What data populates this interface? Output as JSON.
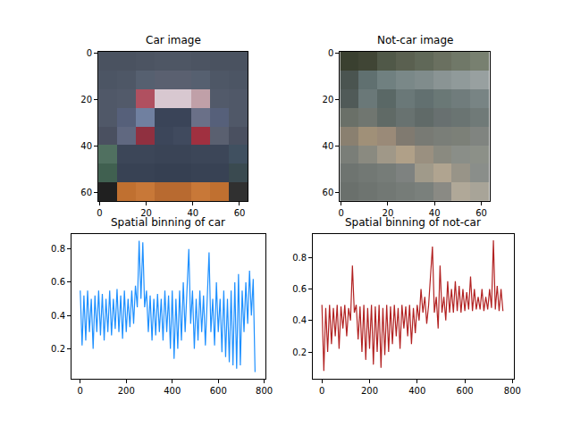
{
  "chart_data": [
    {
      "type": "image",
      "title": "Car image",
      "xlim": [
        -0.5,
        63.5
      ],
      "ylim": [
        63.5,
        -0.5
      ],
      "xticks": [
        0,
        20,
        40,
        60
      ],
      "yticks": [
        0,
        20,
        40,
        60
      ],
      "pixels": [
        [
          "#4a5260",
          "#4a5260",
          "#4c5462",
          "#4e5664",
          "#4e5664",
          "#4c5462",
          "#4a5260",
          "#4a5260"
        ],
        [
          "#4c5564",
          "#4e5766",
          "#566070",
          "#5a6070",
          "#5a6070",
          "#566070",
          "#4e5766",
          "#4c5564"
        ],
        [
          "#505868",
          "#525a6a",
          "#b05060",
          "#d8c8d0",
          "#d8c8d0",
          "#c0a0a8",
          "#525a6a",
          "#505868"
        ],
        [
          "#505868",
          "#56607a",
          "#7080a0",
          "#3a4458",
          "#3a4458",
          "#6a7088",
          "#56607a",
          "#505868"
        ],
        [
          "#4a5060",
          "#606880",
          "#903040",
          "#3c465a",
          "#404a5e",
          "#a03040",
          "#5a6070",
          "#4a5060"
        ],
        [
          "#507060",
          "#3c4658",
          "#3c4658",
          "#3a4456",
          "#3a4456",
          "#3c4658",
          "#3c4658",
          "#405060"
        ],
        [
          "#406050",
          "#384254",
          "#384254",
          "#364052",
          "#364052",
          "#384254",
          "#384254",
          "#3a4a50"
        ],
        [
          "#202020",
          "#c07030",
          "#c87838",
          "#b86a30",
          "#b86a30",
          "#c87838",
          "#c07030",
          "#303030"
        ]
      ]
    },
    {
      "type": "image",
      "title": "Not-car image",
      "xlim": [
        -0.5,
        63.5
      ],
      "ylim": [
        63.5,
        -0.5
      ],
      "xticks": [
        0,
        20,
        40,
        60
      ],
      "yticks": [
        0,
        20,
        40,
        60
      ],
      "pixels": [
        [
          "#3a4030",
          "#404535",
          "#505848",
          "#5a6050",
          "#606858",
          "#6a7060",
          "#707868",
          "#788070"
        ],
        [
          "#4a5450",
          "#607070",
          "#708080",
          "#7a8888",
          "#808c8c",
          "#8a9494",
          "#909a9a",
          "#98a0a0"
        ],
        [
          "#505a58",
          "#6a7878",
          "#5a6866",
          "#6a7878",
          "#627070",
          "#6a7876",
          "#707c7c",
          "#788484"
        ],
        [
          "#6a7068",
          "#707670",
          "#606a66",
          "#687270",
          "#606a68",
          "#687070",
          "#6a7472",
          "#707a78"
        ],
        [
          "#8a8070",
          "#a09078",
          "#9a8a78",
          "#807a70",
          "#787a74",
          "#7a7e78",
          "#7c8078",
          "#808480"
        ],
        [
          "#7a7e78",
          "#8a8a80",
          "#a09888",
          "#b0a088",
          "#9a9080",
          "#8a8a80",
          "#8a8e88",
          "#8c9088"
        ],
        [
          "#6e7470",
          "#727874",
          "#767c78",
          "#7e8280",
          "#a09a8a",
          "#b0a490",
          "#989488",
          "#8a8e8a"
        ],
        [
          "#6a706c",
          "#6e7470",
          "#727874",
          "#767c78",
          "#7a807c",
          "#8a8a84",
          "#b0a898",
          "#a8a498"
        ]
      ]
    },
    {
      "type": "line",
      "title": "Spatial binning of car",
      "color": "#1e90ff",
      "xlim": [
        -38,
        805
      ],
      "ylim": [
        0.02,
        0.89
      ],
      "xticks": [
        0,
        200,
        400,
        600,
        800
      ],
      "yticks": [
        0.2,
        0.4,
        0.6,
        0.8
      ],
      "x": [
        0,
        8,
        16,
        24,
        32,
        40,
        48,
        56,
        64,
        72,
        80,
        88,
        96,
        104,
        112,
        120,
        128,
        136,
        144,
        152,
        160,
        168,
        176,
        184,
        192,
        200,
        208,
        216,
        224,
        232,
        240,
        248,
        256,
        264,
        272,
        280,
        288,
        296,
        304,
        312,
        320,
        328,
        336,
        344,
        352,
        360,
        368,
        376,
        384,
        392,
        400,
        408,
        416,
        424,
        432,
        440,
        448,
        456,
        464,
        472,
        480,
        488,
        496,
        504,
        512,
        520,
        528,
        536,
        544,
        552,
        560,
        568,
        576,
        584,
        592,
        600,
        608,
        616,
        624,
        632,
        640,
        648,
        656,
        664,
        672,
        680,
        688,
        696,
        704,
        712,
        720,
        728,
        736,
        744,
        752,
        760
      ],
      "values": [
        0.55,
        0.22,
        0.52,
        0.25,
        0.55,
        0.3,
        0.5,
        0.2,
        0.52,
        0.3,
        0.55,
        0.28,
        0.53,
        0.25,
        0.5,
        0.3,
        0.55,
        0.28,
        0.5,
        0.32,
        0.56,
        0.3,
        0.52,
        0.26,
        0.55,
        0.3,
        0.5,
        0.33,
        0.55,
        0.35,
        0.58,
        0.45,
        0.85,
        0.5,
        0.84,
        0.45,
        0.55,
        0.3,
        0.52,
        0.25,
        0.5,
        0.28,
        0.53,
        0.3,
        0.5,
        0.25,
        0.55,
        0.3,
        0.52,
        0.2,
        0.55,
        0.14,
        0.5,
        0.2,
        0.55,
        0.25,
        0.6,
        0.3,
        0.55,
        0.8,
        0.35,
        0.55,
        0.2,
        0.5,
        0.25,
        0.55,
        0.3,
        0.52,
        0.22,
        0.55,
        0.78,
        0.3,
        0.5,
        0.22,
        0.6,
        0.3,
        0.5,
        0.18,
        0.55,
        0.15,
        0.5,
        0.12,
        0.55,
        0.1,
        0.6,
        0.08,
        0.65,
        0.1,
        0.55,
        0.3,
        0.6,
        0.35,
        0.67,
        0.4,
        0.62,
        0.06
      ]
    },
    {
      "type": "line",
      "title": "Spatial binning of not-car",
      "color": "#b22222",
      "xlim": [
        -38,
        805
      ],
      "ylim": [
        0.03,
        0.95
      ],
      "xticks": [
        0,
        200,
        400,
        600,
        800
      ],
      "yticks": [
        0.2,
        0.4,
        0.6,
        0.8
      ],
      "x": [
        0,
        8,
        16,
        24,
        32,
        40,
        48,
        56,
        64,
        72,
        80,
        88,
        96,
        104,
        112,
        120,
        128,
        136,
        144,
        152,
        160,
        168,
        176,
        184,
        192,
        200,
        208,
        216,
        224,
        232,
        240,
        248,
        256,
        264,
        272,
        280,
        288,
        296,
        304,
        312,
        320,
        328,
        336,
        344,
        352,
        360,
        368,
        376,
        384,
        392,
        400,
        408,
        416,
        424,
        432,
        440,
        448,
        456,
        464,
        472,
        480,
        488,
        496,
        504,
        512,
        520,
        528,
        536,
        544,
        552,
        560,
        568,
        576,
        584,
        592,
        600,
        608,
        616,
        624,
        632,
        640,
        648,
        656,
        664,
        672,
        680,
        688,
        696,
        704,
        712,
        720,
        728,
        736,
        744,
        752,
        760
      ],
      "values": [
        0.5,
        0.08,
        0.48,
        0.2,
        0.5,
        0.25,
        0.48,
        0.3,
        0.5,
        0.22,
        0.49,
        0.35,
        0.5,
        0.3,
        0.48,
        0.4,
        0.75,
        0.45,
        0.5,
        0.28,
        0.49,
        0.2,
        0.5,
        0.15,
        0.48,
        0.22,
        0.5,
        0.12,
        0.49,
        0.2,
        0.5,
        0.1,
        0.48,
        0.18,
        0.5,
        0.2,
        0.49,
        0.25,
        0.5,
        0.3,
        0.48,
        0.22,
        0.5,
        0.35,
        0.49,
        0.3,
        0.5,
        0.25,
        0.48,
        0.32,
        0.5,
        0.4,
        0.6,
        0.45,
        0.55,
        0.38,
        0.5,
        0.7,
        0.87,
        0.45,
        0.55,
        0.35,
        0.75,
        0.45,
        0.55,
        0.4,
        0.65,
        0.45,
        0.6,
        0.45,
        0.65,
        0.46,
        0.62,
        0.45,
        0.6,
        0.46,
        0.58,
        0.47,
        0.68,
        0.46,
        0.6,
        0.47,
        0.55,
        0.47,
        0.6,
        0.46,
        0.55,
        0.47,
        0.6,
        0.48,
        0.91,
        0.47,
        0.62,
        0.46,
        0.6,
        0.46
      ]
    }
  ]
}
